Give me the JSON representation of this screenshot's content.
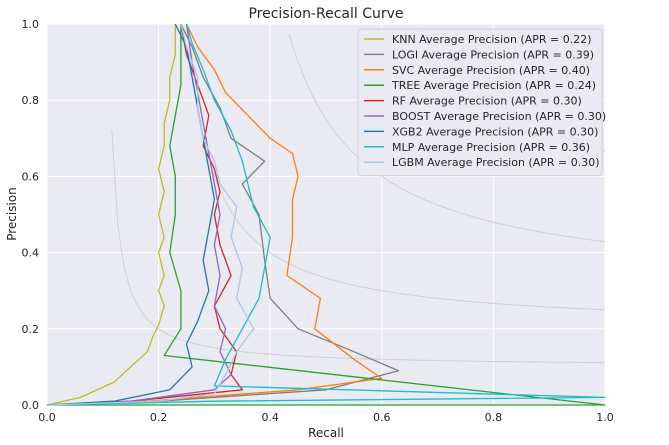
{
  "chart_data": {
    "type": "line",
    "title": "Precision-Recall Curve",
    "xlabel": "Recall",
    "ylabel": "Precision",
    "xlim": [
      0,
      1
    ],
    "ylim": [
      0,
      1
    ],
    "grid": true,
    "iso_f1_curves": true,
    "legend_position": "top-right",
    "xticks": [
      "0.0",
      "0.2",
      "0.4",
      "0.6",
      "0.8",
      "1.0"
    ],
    "yticks": [
      "0.0",
      "0.2",
      "0.4",
      "0.6",
      "0.8",
      "1.0"
    ],
    "series": [
      {
        "name": "KNN Average Precision  (APR = 0.22)",
        "color": "#bcbd22",
        "points": [
          [
            0.0,
            0.0
          ],
          [
            0.06,
            0.02
          ],
          [
            0.09,
            0.04
          ],
          [
            0.12,
            0.06
          ],
          [
            0.15,
            0.1
          ],
          [
            0.18,
            0.14
          ],
          [
            0.19,
            0.18
          ],
          [
            0.2,
            0.21
          ],
          [
            0.21,
            0.26
          ],
          [
            0.2,
            0.3
          ],
          [
            0.21,
            0.34
          ],
          [
            0.2,
            0.4
          ],
          [
            0.21,
            0.44
          ],
          [
            0.2,
            0.5
          ],
          [
            0.21,
            0.56
          ],
          [
            0.2,
            0.62
          ],
          [
            0.21,
            0.68
          ],
          [
            0.21,
            0.74
          ],
          [
            0.22,
            0.8
          ],
          [
            0.22,
            0.86
          ],
          [
            0.23,
            0.92
          ],
          [
            0.23,
            1.0
          ]
        ]
      },
      {
        "name": "LOGI Average Precision  (APR = 0.39)",
        "color": "#7f7f7f",
        "points": [
          [
            0.0,
            0.0
          ],
          [
            0.2,
            0.01
          ],
          [
            0.5,
            0.04
          ],
          [
            0.63,
            0.09
          ],
          [
            0.55,
            0.14
          ],
          [
            0.45,
            0.2
          ],
          [
            0.4,
            0.28
          ],
          [
            0.39,
            0.38
          ],
          [
            0.38,
            0.5
          ],
          [
            0.35,
            0.58
          ],
          [
            0.39,
            0.64
          ],
          [
            0.33,
            0.7
          ],
          [
            0.31,
            0.78
          ],
          [
            0.28,
            0.86
          ],
          [
            0.26,
            0.94
          ],
          [
            0.24,
            1.0
          ]
        ]
      },
      {
        "name": "SVC Average Precision  (APR = 0.40)",
        "color": "#ff7f0e",
        "points": [
          [
            0.0,
            0.0
          ],
          [
            0.18,
            0.01
          ],
          [
            0.45,
            0.04
          ],
          [
            0.6,
            0.07
          ],
          [
            0.55,
            0.12
          ],
          [
            0.48,
            0.2
          ],
          [
            0.49,
            0.28
          ],
          [
            0.43,
            0.34
          ],
          [
            0.44,
            0.44
          ],
          [
            0.44,
            0.54
          ],
          [
            0.45,
            0.6
          ],
          [
            0.44,
            0.66
          ],
          [
            0.4,
            0.7
          ],
          [
            0.36,
            0.76
          ],
          [
            0.32,
            0.82
          ],
          [
            0.3,
            0.88
          ],
          [
            0.27,
            0.94
          ],
          [
            0.25,
            1.0
          ]
        ]
      },
      {
        "name": "TREE Average Precision  (APR = 0.24)",
        "color": "#2ca02c",
        "points": [
          [
            0.0,
            0.0
          ],
          [
            1.0,
            0.0
          ],
          [
            0.21,
            0.13
          ],
          [
            0.24,
            0.2
          ],
          [
            0.24,
            0.3
          ],
          [
            0.22,
            0.4
          ],
          [
            0.23,
            0.5
          ],
          [
            0.23,
            0.6
          ],
          [
            0.22,
            0.68
          ],
          [
            0.23,
            0.76
          ],
          [
            0.24,
            0.84
          ],
          [
            0.24,
            0.92
          ],
          [
            0.24,
            1.0
          ]
        ]
      },
      {
        "name": "RF Average Precision  (APR = 0.30)",
        "color": "#d62728",
        "points": [
          [
            0.0,
            0.0
          ],
          [
            0.15,
            0.01
          ],
          [
            0.35,
            0.04
          ],
          [
            0.33,
            0.08
          ],
          [
            0.34,
            0.14
          ],
          [
            0.31,
            0.2
          ],
          [
            0.3,
            0.26
          ],
          [
            0.33,
            0.34
          ],
          [
            0.31,
            0.42
          ],
          [
            0.3,
            0.5
          ],
          [
            0.31,
            0.56
          ],
          [
            0.3,
            0.62
          ],
          [
            0.28,
            0.68
          ],
          [
            0.29,
            0.76
          ],
          [
            0.27,
            0.84
          ],
          [
            0.25,
            0.92
          ],
          [
            0.24,
            1.0
          ]
        ]
      },
      {
        "name": "BOOST Average Precision  (APR = 0.30)",
        "color": "#9467bd",
        "points": [
          [
            0.0,
            0.0
          ],
          [
            0.15,
            0.01
          ],
          [
            0.3,
            0.04
          ],
          [
            0.33,
            0.08
          ],
          [
            0.31,
            0.14
          ],
          [
            0.32,
            0.2
          ],
          [
            0.3,
            0.26
          ],
          [
            0.31,
            0.34
          ],
          [
            0.3,
            0.42
          ],
          [
            0.31,
            0.5
          ],
          [
            0.3,
            0.58
          ],
          [
            0.29,
            0.66
          ],
          [
            0.28,
            0.74
          ],
          [
            0.27,
            0.82
          ],
          [
            0.26,
            0.9
          ],
          [
            0.25,
            1.0
          ]
        ]
      },
      {
        "name": "XGB2 Average Precision  (APR = 0.30)",
        "color": "#1f77b4",
        "points": [
          [
            0.0,
            0.0
          ],
          [
            0.12,
            0.01
          ],
          [
            0.22,
            0.04
          ],
          [
            0.26,
            0.1
          ],
          [
            0.25,
            0.16
          ],
          [
            0.27,
            0.22
          ],
          [
            0.29,
            0.3
          ],
          [
            0.28,
            0.38
          ],
          [
            0.29,
            0.46
          ],
          [
            0.3,
            0.54
          ],
          [
            0.29,
            0.62
          ],
          [
            0.28,
            0.7
          ],
          [
            0.27,
            0.78
          ],
          [
            0.26,
            0.86
          ],
          [
            0.25,
            0.94
          ],
          [
            0.23,
            1.0
          ]
        ]
      },
      {
        "name": "MLP Average Precision  (APR = 0.36)",
        "color": "#17becf",
        "points": [
          [
            0.0,
            0.0
          ],
          [
            0.3,
            0.01
          ],
          [
            1.0,
            0.02
          ],
          [
            0.3,
            0.05
          ],
          [
            0.32,
            0.12
          ],
          [
            0.35,
            0.2
          ],
          [
            0.38,
            0.28
          ],
          [
            0.39,
            0.36
          ],
          [
            0.4,
            0.44
          ],
          [
            0.37,
            0.52
          ],
          [
            0.36,
            0.58
          ],
          [
            0.35,
            0.64
          ],
          [
            0.33,
            0.72
          ],
          [
            0.3,
            0.8
          ],
          [
            0.28,
            0.88
          ],
          [
            0.26,
            0.95
          ],
          [
            0.25,
            1.0
          ]
        ]
      },
      {
        "name": "LGBM Average Precision  (APR = 0.30)",
        "color": "#aec7e8",
        "points": [
          [
            0.0,
            0.0
          ],
          [
            0.2,
            0.01
          ],
          [
            0.3,
            0.03
          ],
          [
            0.32,
            0.08
          ],
          [
            0.34,
            0.14
          ],
          [
            0.37,
            0.2
          ],
          [
            0.34,
            0.28
          ],
          [
            0.35,
            0.36
          ],
          [
            0.33,
            0.44
          ],
          [
            0.34,
            0.52
          ],
          [
            0.31,
            0.58
          ],
          [
            0.3,
            0.64
          ],
          [
            0.28,
            0.7
          ],
          [
            0.27,
            0.78
          ],
          [
            0.27,
            0.86
          ],
          [
            0.25,
            0.94
          ],
          [
            0.24,
            1.0
          ]
        ]
      }
    ]
  }
}
